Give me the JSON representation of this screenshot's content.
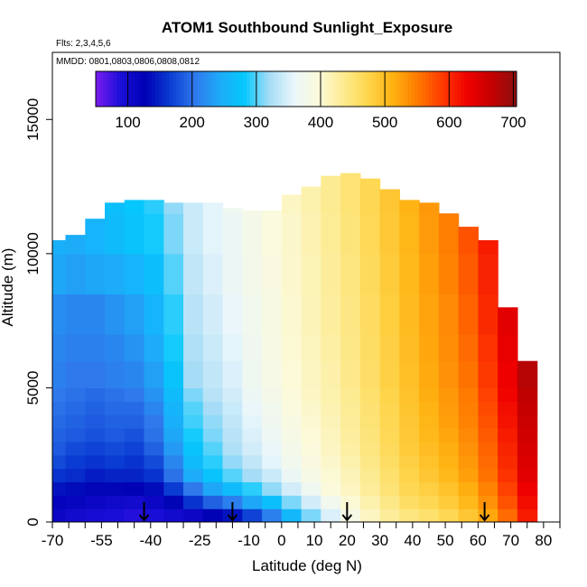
{
  "chart_data": {
    "type": "heatmap",
    "title": "ATOM1 Southbound Sunlight_Exposure",
    "subtitle_flights": "Flts: 2,3,4,5,6",
    "subtitle_dates": "MMDD: 0801,0803,0806,0808,0812",
    "xlabel": "Latitude (deg N)",
    "ylabel": "Altitude (m)",
    "xlim": [
      -70,
      80
    ],
    "ylim": [
      0,
      17500
    ],
    "x_ticks": [
      -70,
      -65,
      -60,
      -55,
      -50,
      -45,
      -40,
      -35,
      -30,
      -25,
      -20,
      -15,
      -10,
      -5,
      0,
      5,
      10,
      15,
      20,
      25,
      30,
      35,
      40,
      45,
      50,
      55,
      60,
      65,
      70,
      75,
      80,
      85
    ],
    "x_tick_labels": [
      "-70",
      "-55",
      "-40",
      "-25",
      "-10",
      "0",
      "10",
      "20",
      "30",
      "40",
      "50",
      "60",
      "70",
      "80"
    ],
    "x_tick_label_values": [
      -70,
      -55,
      -40,
      -25,
      -10,
      0,
      10,
      20,
      30,
      40,
      50,
      60,
      70,
      80
    ],
    "y_ticks": [
      0,
      5000,
      10000,
      15000
    ],
    "y_tick_labels": [
      "0",
      "5000",
      "10000",
      "15000"
    ],
    "colorbar": {
      "range": [
        50,
        705
      ],
      "tick_values": [
        100,
        200,
        300,
        400,
        500,
        600,
        700
      ],
      "tick_labels": [
        "100",
        "200",
        "300",
        "400",
        "500",
        "600",
        "700"
      ],
      "colors": [
        "#7a1cf0",
        "#1a0fd8",
        "#0000b4",
        "#0a3cd2",
        "#2f78ec",
        "#1eaaf8",
        "#05c8fd",
        "#a6dcf6",
        "#e9f6fb",
        "#fcfadb",
        "#fdeb90",
        "#fed54c",
        "#ffb210",
        "#fe7a00",
        "#fe3a00",
        "#f00000",
        "#c40000",
        "#8a1010"
      ]
    },
    "series": [
      {
        "x": -69,
        "values": [
          110,
          120,
          140,
          160,
          175,
          185,
          190,
          195,
          200,
          205,
          210,
          215,
          220,
          240,
          250,
          255
        ]
      },
      {
        "x": -63,
        "values": [
          100,
          115,
          135,
          155,
          165,
          175,
          185,
          190,
          195,
          200,
          205,
          210,
          215,
          235,
          245,
          250
        ]
      },
      {
        "x": -57,
        "values": [
          95,
          110,
          130,
          145,
          160,
          170,
          180,
          185,
          190,
          195,
          205,
          210,
          215,
          240,
          255,
          260
        ]
      },
      {
        "x": -51,
        "values": [
          90,
          105,
          130,
          150,
          165,
          175,
          185,
          190,
          195,
          200,
          210,
          215,
          225,
          245,
          265,
          270
        ]
      },
      {
        "x": -45,
        "values": [
          85,
          100,
          125,
          150,
          160,
          170,
          180,
          190,
          195,
          205,
          215,
          225,
          235,
          255,
          275,
          280
        ]
      },
      {
        "x": -39,
        "values": [
          90,
          110,
          135,
          160,
          175,
          190,
          200,
          205,
          215,
          225,
          235,
          245,
          255,
          270,
          285,
          290
        ]
      },
      {
        "x": -33,
        "values": [
          100,
          130,
          165,
          200,
          215,
          230,
          240,
          250,
          255,
          265,
          275,
          285,
          290,
          300,
          310,
          315
        ]
      },
      {
        "x": -27,
        "values": [
          110,
          160,
          205,
          245,
          265,
          275,
          285,
          295,
          300,
          310,
          320,
          325,
          330,
          335,
          340,
          340
        ]
      },
      {
        "x": -21,
        "values": [
          125,
          190,
          240,
          275,
          290,
          300,
          310,
          315,
          320,
          330,
          335,
          340,
          345,
          350,
          355,
          355
        ]
      },
      {
        "x": -15,
        "values": [
          140,
          210,
          265,
          300,
          315,
          325,
          330,
          335,
          340,
          345,
          350,
          355,
          360,
          365,
          365,
          370
        ]
      },
      {
        "x": -9,
        "values": [
          170,
          240,
          290,
          320,
          335,
          345,
          350,
          355,
          360,
          365,
          370,
          372,
          375,
          378,
          380,
          385
        ]
      },
      {
        "x": -3,
        "values": [
          210,
          270,
          315,
          340,
          355,
          362,
          368,
          372,
          375,
          380,
          383,
          386,
          388,
          390,
          392,
          395
        ]
      },
      {
        "x": 3,
        "values": [
          260,
          310,
          345,
          365,
          375,
          380,
          385,
          388,
          392,
          395,
          398,
          400,
          402,
          404,
          405,
          408
        ]
      },
      {
        "x": 9,
        "values": [
          310,
          345,
          370,
          385,
          390,
          395,
          398,
          402,
          405,
          408,
          410,
          412,
          414,
          416,
          418,
          420
        ]
      },
      {
        "x": 15,
        "values": [
          350,
          375,
          395,
          400,
          405,
          410,
          412,
          415,
          418,
          420,
          422,
          425,
          428,
          430,
          432,
          435
        ]
      },
      {
        "x": 21,
        "values": [
          385,
          400,
          410,
          415,
          420,
          425,
          428,
          430,
          432,
          435,
          438,
          440,
          442,
          445,
          448,
          450
        ]
      },
      {
        "x": 27,
        "values": [
          410,
          420,
          430,
          435,
          440,
          445,
          448,
          450,
          452,
          455,
          458,
          460,
          462,
          465,
          468,
          470
        ]
      },
      {
        "x": 33,
        "values": [
          430,
          440,
          450,
          455,
          460,
          465,
          468,
          470,
          472,
          475,
          478,
          480,
          482,
          485,
          488,
          490
        ]
      },
      {
        "x": 39,
        "values": [
          445,
          460,
          470,
          475,
          480,
          485,
          488,
          490,
          492,
          495,
          498,
          500,
          502,
          505,
          508,
          510
        ]
      },
      {
        "x": 45,
        "values": [
          455,
          470,
          480,
          490,
          495,
          500,
          505,
          508,
          510,
          515,
          518,
          520,
          522,
          525,
          528,
          530
        ]
      },
      {
        "x": 51,
        "values": [
          470,
          485,
          495,
          505,
          510,
          515,
          520,
          525,
          528,
          530,
          535,
          538,
          540,
          545,
          548,
          550
        ]
      },
      {
        "x": 57,
        "values": [
          490,
          505,
          515,
          525,
          530,
          535,
          540,
          545,
          548,
          550,
          555,
          560,
          565,
          570,
          575,
          580
        ]
      },
      {
        "x": 63,
        "values": [
          520,
          535,
          545,
          555,
          560,
          565,
          570,
          575,
          580,
          585,
          590,
          595,
          600,
          605,
          610,
          615
        ]
      },
      {
        "x": 69,
        "values": [
          560,
          575,
          585,
          595,
          600,
          605,
          610,
          615,
          620,
          625,
          630,
          635,
          640,
          645,
          650,
          655
        ]
      },
      {
        "x": 75,
        "values": [
          610,
          620,
          630,
          640,
          645,
          650,
          655,
          660,
          665,
          670,
          675,
          680,
          685,
          690,
          695,
          700
        ]
      }
    ],
    "profile_top_altitude": [
      10500,
      10700,
      11300,
      11900,
      12000,
      12000,
      11900,
      11900,
      11900,
      11700,
      11600,
      11600,
      12200,
      12500,
      12900,
      13000,
      12800,
      12400,
      12000,
      11900,
      11500,
      11000,
      10500,
      8000,
      6000
    ],
    "altitude_bin_edges": [
      0,
      500,
      1000,
      1500,
      2000,
      2500,
      3000,
      3500,
      4000,
      4500,
      5000,
      6000,
      7000,
      8500,
      10000,
      11500,
      13500
    ],
    "flight_marker_latitudes": [
      -42,
      -15,
      20,
      62
    ],
    "grid": false,
    "colorbar_position": "top"
  }
}
